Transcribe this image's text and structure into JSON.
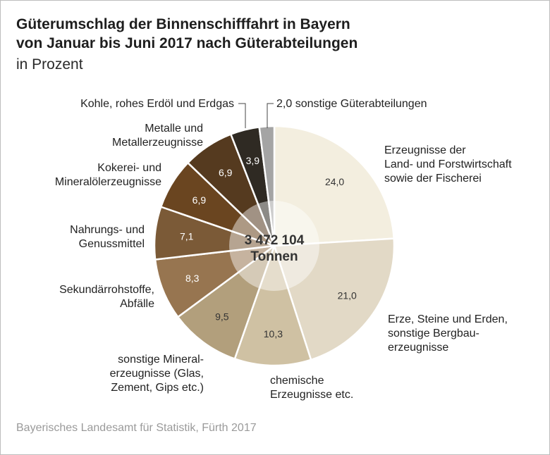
{
  "header": {
    "title_line1": "Güterumschlag der Binnenschifffahrt in Bayern",
    "title_line2": "von Januar bis Juni 2017 nach Güterabteilungen",
    "subtitle": "in Prozent"
  },
  "source": "Bayerisches Landesamt für Statistik, Fürth 2017",
  "center": {
    "line1": "3 472 104",
    "line2": "Tonnen"
  },
  "chart_data": {
    "type": "pie",
    "variant": "donut",
    "total_label": "3 472 104 Tonnen",
    "unit": "Prozent",
    "value_format": "comma_decimal",
    "slices": [
      {
        "label_lines": [
          "Erzeugnisse der",
          "Land- und Forstwirtschaft",
          "sowie der Fischerei"
        ],
        "value": 24.0,
        "color": "#f3eedf"
      },
      {
        "label_lines": [
          "Erze, Steine und Erden,",
          "sonstige Bergbau-",
          "erzeugnisse"
        ],
        "value": 21.0,
        "color": "#e2d9c6"
      },
      {
        "label_lines": [
          "chemische",
          "Erzeugnisse etc."
        ],
        "value": 10.3,
        "color": "#cfc1a3"
      },
      {
        "label_lines": [
          "sonstige Mineral-",
          "erzeugnisse (Glas,",
          "Zement, Gips etc.)"
        ],
        "value": 9.5,
        "color": "#b29f7c"
      },
      {
        "label_lines": [
          "Sekundärrohstoffe,",
          "Abfälle"
        ],
        "value": 8.3,
        "color": "#977550"
      },
      {
        "label_lines": [
          "Nahrungs- und",
          "Genussmittel"
        ],
        "value": 7.1,
        "color": "#7b5a37"
      },
      {
        "label_lines": [
          "Kokerei- und",
          "Mineralölerzeugnisse"
        ],
        "value": 6.9,
        "color": "#6a4520"
      },
      {
        "label_lines": [
          "Metalle und",
          "Metallerzeugnisse"
        ],
        "value": 6.9,
        "color": "#553a1f"
      },
      {
        "label_lines": [
          "Kohle, rohes Erdöl und Erdgas"
        ],
        "value": 3.9,
        "color": "#2f2a23"
      },
      {
        "label_lines": [
          "2,0 sonstige Güterabteilungen"
        ],
        "value": 2.0,
        "color": "#a4a4a4"
      }
    ]
  }
}
